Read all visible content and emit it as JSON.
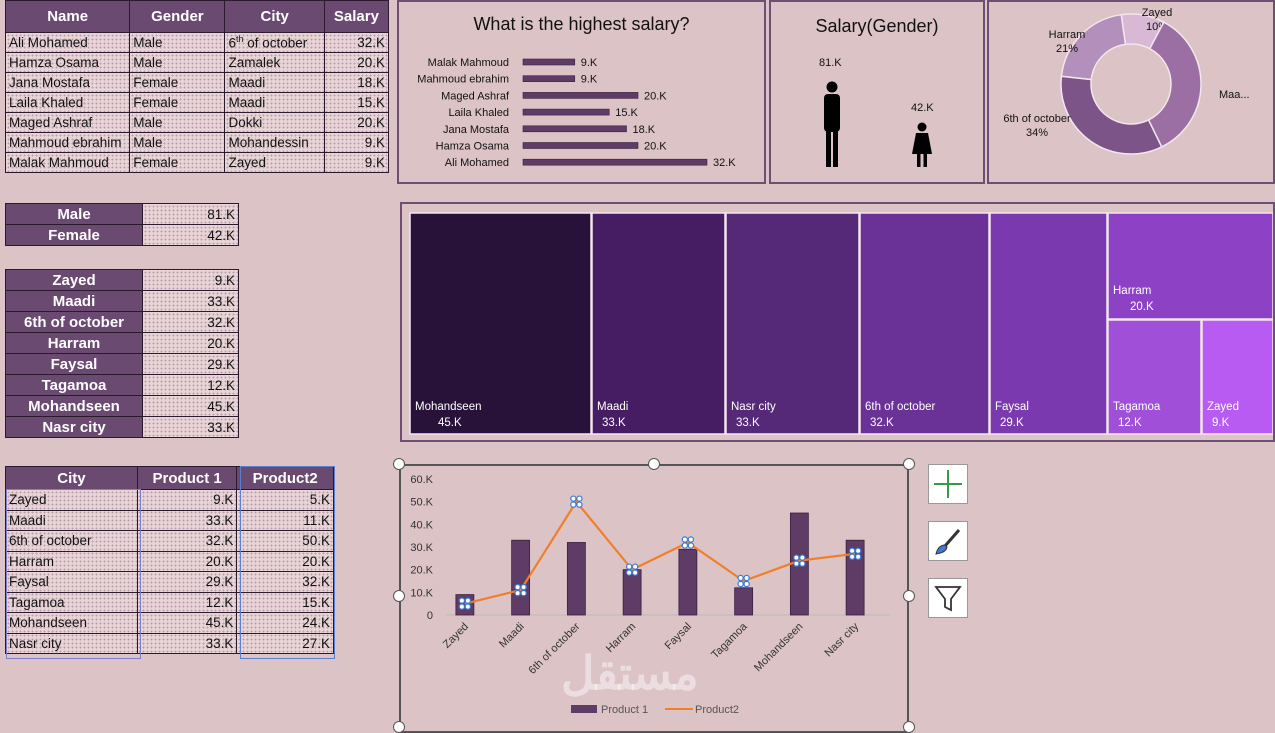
{
  "employees": {
    "headers": [
      "Name",
      "Gender",
      "City",
      "Salary"
    ],
    "rows": [
      [
        "Ali Mohamed",
        "Male",
        "6th of october",
        "32.K"
      ],
      [
        "Hamza Osama",
        "Male",
        "Zamalek",
        "20.K"
      ],
      [
        "Jana Mostafa",
        "Female",
        "Maadi",
        "18.K"
      ],
      [
        "Laila Khaled",
        "Female",
        "Maadi",
        "15.K"
      ],
      [
        "Maged Ashraf",
        "Male",
        "Dokki",
        "20.K"
      ],
      [
        "Mahmoud ebrahim",
        "Male",
        "Mohandessin",
        "9.K"
      ],
      [
        "Malak Mahmoud",
        "Female",
        "Zayed",
        "9.K"
      ]
    ]
  },
  "gender_totals": [
    [
      "Male",
      "81.K"
    ],
    [
      "Female",
      "42.K"
    ]
  ],
  "city_totals": [
    [
      "Zayed",
      "9.K"
    ],
    [
      "Maadi",
      "33.K"
    ],
    [
      "6th of october",
      "32.K"
    ],
    [
      "Harram",
      "20.K"
    ],
    [
      "Faysal",
      "29.K"
    ],
    [
      "Tagamoa",
      "12.K"
    ],
    [
      "Mohandseen",
      "45.K"
    ],
    [
      "Nasr city",
      "33.K"
    ]
  ],
  "products": {
    "headers": [
      "City",
      "Product 1",
      "Product2"
    ],
    "rows": [
      [
        "Zayed",
        "9.K",
        "5.K"
      ],
      [
        "Maadi",
        "33.K",
        "11.K"
      ],
      [
        "6th of october",
        "32.K",
        "50.K"
      ],
      [
        "Harram",
        "20.K",
        "20.K"
      ],
      [
        "Faysal",
        "29.K",
        "32.K"
      ],
      [
        "Tagamoa",
        "12.K",
        "15.K"
      ],
      [
        "Mohandseen",
        "45.K",
        "24.K"
      ],
      [
        "Nasr city",
        "33.K",
        "27.K"
      ]
    ]
  },
  "watermark": "مستقل",
  "colors": {
    "header": "#6b4a72",
    "panel_border": "#6e4e73",
    "background": "#dcc3c6",
    "line": "#f07f2a",
    "bar": "#5e3c66"
  },
  "chart_data": [
    {
      "type": "bar",
      "orientation": "horizontal",
      "title": "What is the highest salary?",
      "categories": [
        "Malak Mahmoud",
        "Mahmoud ebrahim",
        "Maged Ashraf",
        "Laila Khaled",
        "Jana Mostafa",
        "Hamza Osama",
        "Ali Mohamed"
      ],
      "values": [
        9,
        9,
        20,
        15,
        18,
        20,
        32
      ],
      "labels": [
        "9.K",
        "9.K",
        "20.K",
        "15.K",
        "18.K",
        "20.K",
        "32.K"
      ],
      "max": 32
    },
    {
      "type": "bar",
      "title": "Salary(Gender)",
      "categories": [
        "Male",
        "Female"
      ],
      "values": [
        81,
        42
      ],
      "labels": [
        "81.K",
        "42.K"
      ],
      "icons": [
        "male-person-icon",
        "female-person-icon"
      ]
    },
    {
      "type": "pie",
      "style": "doughnut",
      "slices": [
        {
          "label": "Zayed",
          "percent": "10%",
          "value": 10,
          "color": "#d8b8d4"
        },
        {
          "label": "Maa...",
          "percent": "",
          "value": 35,
          "color": "#9b6fa4"
        },
        {
          "label": "6th of october",
          "percent": "34%",
          "value": 34,
          "color": "#7c5487"
        },
        {
          "label": "Harram",
          "percent": "21%",
          "value": 21,
          "color": "#b38fbb"
        }
      ]
    },
    {
      "type": "heatmap",
      "style": "treemap",
      "items": [
        {
          "label": "Mohandseen",
          "value": 45,
          "text": "45.K",
          "color": "#28123a"
        },
        {
          "label": "Maadi",
          "value": 33,
          "text": "33.K",
          "color": "#461d63"
        },
        {
          "label": "Nasr city",
          "value": 33,
          "text": "33.K",
          "color": "#562878"
        },
        {
          "label": "6th of october",
          "value": 32,
          "text": "32.K",
          "color": "#6a3196"
        },
        {
          "label": "Faysal",
          "value": 29,
          "text": "29.K",
          "color": "#7b39b0"
        },
        {
          "label": "Harram",
          "value": 20,
          "text": "20.K",
          "color": "#8d42c6"
        },
        {
          "label": "Tagamoa",
          "value": 12,
          "text": "12.K",
          "color": "#a04fd9"
        },
        {
          "label": "Zayed",
          "value": 9,
          "text": "9.K",
          "color": "#b85bf2"
        }
      ]
    },
    {
      "type": "bar",
      "combo": "bar+line",
      "categories": [
        "Zayed",
        "Maadi",
        "6th of october",
        "Harram",
        "Faysal",
        "Tagamoa",
        "Mohandseen",
        "Nasr city"
      ],
      "series": [
        {
          "name": "Product 1",
          "type": "bar",
          "values": [
            9,
            33,
            32,
            20,
            29,
            12,
            45,
            33
          ]
        },
        {
          "name": "Product2",
          "type": "line",
          "values": [
            5,
            11,
            50,
            20,
            32,
            15,
            24,
            27
          ]
        }
      ],
      "yticks": [
        "0",
        "10.K",
        "20.K",
        "30.K",
        "40.K",
        "50.K",
        "60.K"
      ],
      "ylim": [
        0,
        60
      ],
      "legend": "bottom"
    }
  ]
}
